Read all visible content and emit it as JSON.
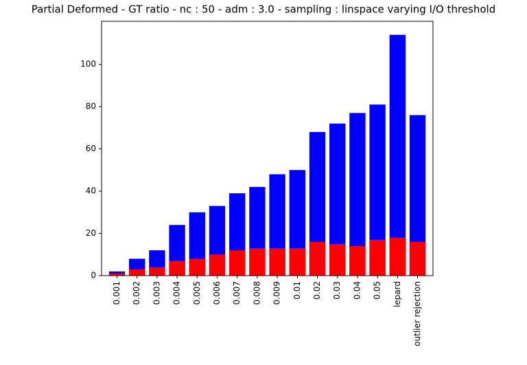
{
  "chart_data": {
    "type": "bar",
    "title": "Partial Deformed - GT ratio - nc : 50 - adm : 3.0 - sampling : linspace varying I/O threshold",
    "categories": [
      "0.001",
      "0.002",
      "0.003",
      "0.004",
      "0.005",
      "0.006",
      "0.007",
      "0.008",
      "0.009",
      "0.01",
      "0.02",
      "0.03",
      "0.04",
      "0.05",
      "lepard",
      "outlier rejection"
    ],
    "series": [
      {
        "color": "#0000ff",
        "values": [
          2,
          8,
          12,
          24,
          30,
          33,
          39,
          42,
          48,
          50,
          68,
          72,
          77,
          81,
          114,
          76
        ]
      },
      {
        "color": "#ff0000",
        "values": [
          1,
          3,
          4,
          7,
          8,
          10,
          12,
          13,
          13,
          13,
          16,
          15,
          14,
          17,
          18,
          16
        ]
      }
    ],
    "ylim": [
      0,
      120.4
    ],
    "yticks": [
      0,
      20,
      40,
      60,
      80,
      100
    ]
  }
}
